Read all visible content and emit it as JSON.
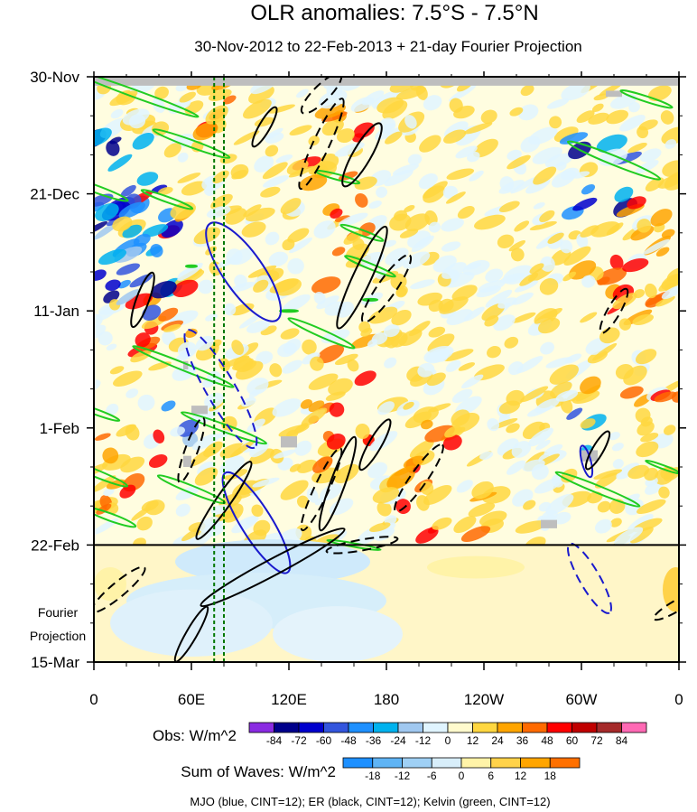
{
  "chart_data": {
    "type": "heatmap",
    "title": "OLR anomalies: 7.5°S - 7.5°N",
    "subtitle": "30-Nov-2012 to 22-Feb-2013 + 21-day Fourier Projection",
    "x_tick_labels": [
      "0",
      "60E",
      "120E",
      "180",
      "120W",
      "60W",
      "0"
    ],
    "x_ticks_lon": [
      0,
      60,
      120,
      180,
      240,
      300,
      360
    ],
    "y_tick_labels": [
      "30-Nov",
      "21-Dec",
      "11-Jan",
      "1-Feb",
      "22-Feb",
      "15-Mar"
    ],
    "y_ticks_day": [
      0,
      21,
      42,
      63,
      84,
      105
    ],
    "projection_label": [
      "Fourier",
      "Projection"
    ],
    "projection_start_day": 84,
    "obs_colorbar": {
      "label": "Obs: W/m^2",
      "levels": [
        "-84",
        "-72",
        "-60",
        "-48",
        "-36",
        "-24",
        "-12",
        "0",
        "12",
        "24",
        "36",
        "48",
        "60",
        "72",
        "84"
      ],
      "colors": [
        "#8a2be2",
        "#00008b",
        "#0000cd",
        "#3355dd",
        "#1e90ff",
        "#00b2ee",
        "#a0c8f0",
        "#e0f4ff",
        "#fffacd",
        "#ffd740",
        "#ffa500",
        "#ff6a00",
        "#ff0000",
        "#c00000",
        "#a52a2a",
        "#ff69b4"
      ]
    },
    "waves_colorbar": {
      "label": "Sum of Waves: W/m^2",
      "levels": [
        "-18",
        "-12",
        "-6",
        "0",
        "6",
        "12",
        "18"
      ],
      "colors": [
        "#1e90ff",
        "#5fb4f5",
        "#9fd0f5",
        "#d8eefa",
        "#fff3a8",
        "#ffd24a",
        "#ffa500",
        "#ff7000"
      ]
    },
    "footer": "MJO (blue, CINT=12); ER (black, CINT=12); Kelvin (green, CINT=12)",
    "colors": {
      "mjo": "#1a1acd",
      "er": "#000000",
      "kelvin": "#22cc22",
      "reference_lines": "#007700",
      "missing": "#bebebe"
    },
    "reference_lines_lon": [
      74,
      80
    ]
  }
}
